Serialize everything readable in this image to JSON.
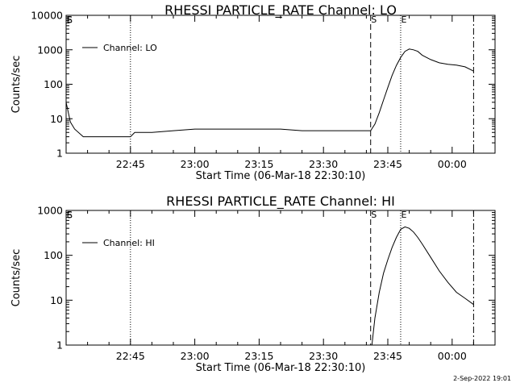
{
  "footer": {
    "timestamp": "2-Sep-2022 19:01"
  },
  "chart_data": [
    {
      "type": "line",
      "title": "RHESSI PARTICLE_RATE Channel: LO",
      "xlabel": "Start Time (06-Mar-18 22:30:10)",
      "ylabel": "Counts/sec",
      "yscale": "log",
      "ylim": [
        1,
        10000
      ],
      "xlim": [
        "22:30",
        "00:10"
      ],
      "y_tick_labels": [
        "10000",
        "1000",
        "100",
        "10",
        "1"
      ],
      "x_tick_labels": [
        "22:45",
        "23:00",
        "23:15",
        "23:30",
        "23:45",
        "00:00"
      ],
      "legend": "Channel: LO",
      "legend_position": "top-left",
      "vlines": [
        {
          "x": "22:30",
          "style": "solid",
          "label": "E"
        },
        {
          "x": "22:30",
          "style": "solid",
          "label": "S"
        },
        {
          "x": "22:45",
          "style": "dotted",
          "label": ""
        },
        {
          "x": "23:41",
          "style": "dashed",
          "label": "S"
        },
        {
          "x": "23:48",
          "style": "dotted",
          "label": "E"
        },
        {
          "x": "00:05",
          "style": "dashdot",
          "label": ""
        }
      ],
      "series": [
        {
          "name": "Channel: LO",
          "x": [
            "22:30",
            "22:31",
            "22:32",
            "22:34",
            "22:36",
            "22:38",
            "22:40",
            "22:42",
            "22:44",
            "22:45",
            "22:46",
            "22:50",
            "22:55",
            "23:00",
            "23:05",
            "23:10",
            "23:15",
            "23:20",
            "23:25",
            "23:30",
            "23:35",
            "23:38",
            "23:41",
            "23:42",
            "23:43",
            "23:44",
            "23:45",
            "23:46",
            "23:47",
            "23:48",
            "23:49",
            "23:50",
            "23:51",
            "23:52",
            "23:53",
            "23:55",
            "23:57",
            "23:59",
            "00:01",
            "00:03",
            "00:05"
          ],
          "y": [
            30,
            8,
            5,
            3,
            3,
            3,
            3,
            3,
            3,
            3,
            4,
            4,
            4.5,
            5,
            5,
            5,
            5,
            5,
            4.5,
            4.5,
            4.5,
            4.5,
            4.5,
            7,
            15,
            35,
            80,
            180,
            350,
            600,
            900,
            1050,
            1000,
            900,
            700,
            520,
            420,
            380,
            360,
            320,
            240
          ]
        }
      ]
    },
    {
      "type": "line",
      "title": "RHESSI PARTICLE_RATE Channel: HI",
      "xlabel": "Start Time (06-Mar-18 22:30:10)",
      "ylabel": "Counts/sec",
      "yscale": "log",
      "ylim": [
        1,
        1000
      ],
      "xlim": [
        "22:30",
        "00:10"
      ],
      "y_tick_labels": [
        "1000",
        "100",
        "10",
        "1"
      ],
      "x_tick_labels": [
        "22:45",
        "23:00",
        "23:15",
        "23:30",
        "23:45",
        "00:00"
      ],
      "legend": "Channel: HI",
      "legend_position": "top-left",
      "vlines": [
        {
          "x": "22:30",
          "style": "solid",
          "label": "E"
        },
        {
          "x": "22:30",
          "style": "solid",
          "label": "S"
        },
        {
          "x": "22:45",
          "style": "dotted",
          "label": ""
        },
        {
          "x": "23:41",
          "style": "dashed",
          "label": "S"
        },
        {
          "x": "23:48",
          "style": "dotted",
          "label": "E"
        },
        {
          "x": "00:05",
          "style": "dashdot",
          "label": ""
        }
      ],
      "series": [
        {
          "name": "Channel: HI",
          "x": [
            "23:41.3",
            "23:42",
            "23:43",
            "23:44",
            "23:45",
            "23:46",
            "23:47",
            "23:48",
            "23:49",
            "23:50",
            "23:51",
            "23:52",
            "23:53",
            "23:55",
            "23:57",
            "23:59",
            "00:01",
            "00:03",
            "00:05"
          ],
          "y": [
            1,
            4,
            15,
            40,
            80,
            150,
            250,
            380,
            430,
            400,
            330,
            250,
            180,
            90,
            45,
            25,
            15,
            11,
            8
          ]
        }
      ]
    }
  ]
}
